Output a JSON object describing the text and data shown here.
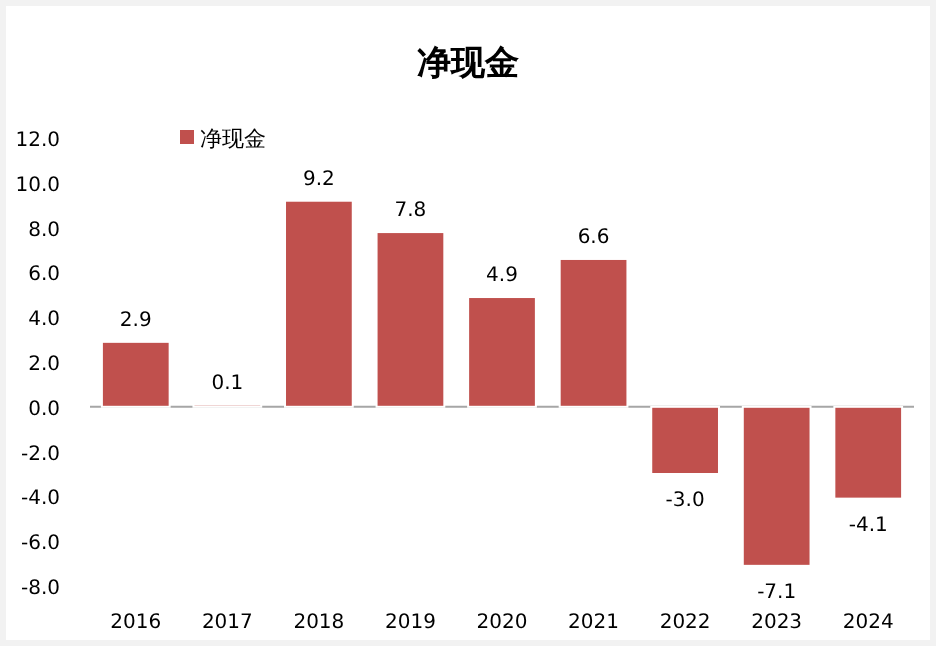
{
  "chart_data": {
    "type": "bar",
    "title": "净现金",
    "categories": [
      "2016",
      "2017",
      "2018",
      "2019",
      "2020",
      "2021",
      "2022",
      "2023",
      "2024"
    ],
    "series": [
      {
        "name": "净现金",
        "color": "#c0504d",
        "values": [
          2.9,
          0.1,
          9.2,
          7.8,
          4.9,
          6.6,
          -3.0,
          -7.1,
          -4.1
        ]
      }
    ],
    "value_labels": [
      "2.9",
      "0.1",
      "9.2",
      "7.8",
      "4.9",
      "6.6",
      "-3.0",
      "-7.1",
      "-4.1"
    ],
    "ylim": [
      -8,
      12
    ],
    "yticks": [
      {
        "value": -8,
        "label": "-8.0"
      },
      {
        "value": -6,
        "label": "-6.0"
      },
      {
        "value": -4,
        "label": "-4.0"
      },
      {
        "value": -2,
        "label": "-2.0"
      },
      {
        "value": 0,
        "label": "0.0"
      },
      {
        "value": 2,
        "label": "2.0"
      },
      {
        "value": 4,
        "label": "4.0"
      },
      {
        "value": 6,
        "label": "6.0"
      },
      {
        "value": 8,
        "label": "8.0"
      },
      {
        "value": 10,
        "label": "10.0"
      },
      {
        "value": 12,
        "label": "12.0"
      }
    ],
    "legend": "top left"
  }
}
